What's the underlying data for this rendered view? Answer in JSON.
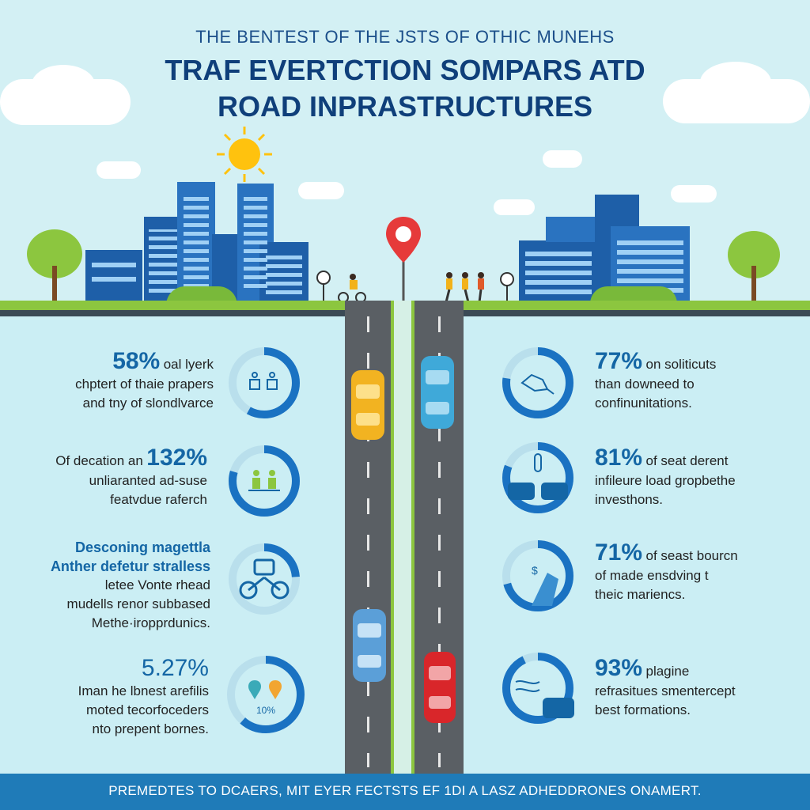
{
  "header": {
    "subtitle": "THE BENTEST OF THE JSTS OF OTHIC MUNEHS",
    "title_line1": "TRAF EVERTCTION SOMPARS ATD",
    "title_line2": "ROAD INPRASTRUCTURES"
  },
  "left_items": [
    {
      "stat": "58%",
      "line1": "oal lyerk",
      "line2": "chptert of thaie prapers",
      "line3": "and tny of slondlvarce",
      "icon": "people-icon"
    },
    {
      "stat": "132%",
      "line1": "Of decation an",
      "line2": "unliaranted ad-suse",
      "line3": "featvdue raferch",
      "icon": "group-icon"
    },
    {
      "bold1": "Desconing magettla",
      "bold2": "Anther defetur stralless",
      "line1": "letee Vonte rhead",
      "line2": "mudells renor subbased",
      "line3": "Methe·iropprdunics.",
      "icon": "bicycle-icon"
    },
    {
      "stat": "5.27%",
      "line1": "Iman he lbnest arefilis",
      "line2": "moted tecorfoceders",
      "line3": "nto prepent bornes.",
      "ring_label": "10%",
      "icon": "location-icon"
    }
  ],
  "right_items": [
    {
      "stat": "77%",
      "line1": "on soliticuts",
      "line2": "than downeed to",
      "line3": "confinunitations.",
      "icon": "hand-icon"
    },
    {
      "stat": "81%",
      "line1": "of seat derent",
      "line2": "infileure load gropbethe",
      "line3": "investhons.",
      "icon": "cars-icon"
    },
    {
      "stat": "71%",
      "line1": "of seast bourcn",
      "line2": "of made ensdving t",
      "line3": "theic mariencs.",
      "icon": "bridge-icon"
    },
    {
      "stat": "93%",
      "line1": "plagine",
      "line2": "refrasitues smentercept",
      "line3": "best formations.",
      "icon": "car-icon"
    }
  ],
  "footer": {
    "text": "PREMEDTES TO DCAERS, MIT EYER FECTSTS EF 1DI A LASZ ADHEDDRONES ONAMERT."
  },
  "colors": {
    "accent": "#1466a5",
    "ring": "#1a72c2",
    "ring_track": "#b9dfec",
    "grass": "#8cc63f",
    "road": "#5a5f64",
    "footer": "#1f7bb8"
  }
}
